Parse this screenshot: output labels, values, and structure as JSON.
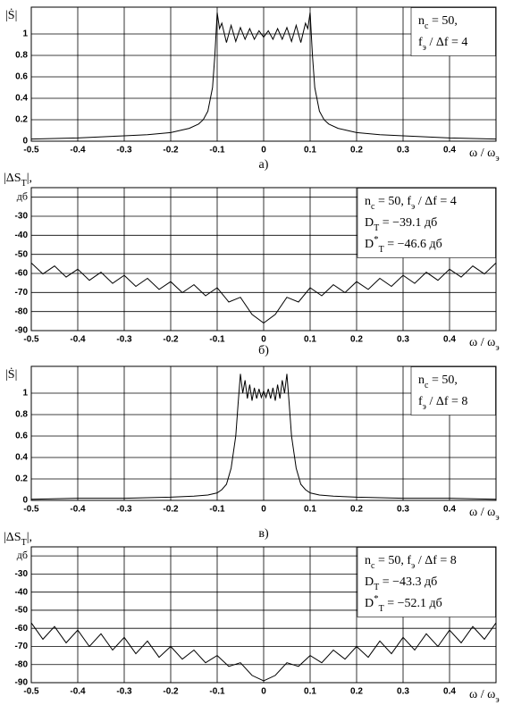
{
  "chart_data": [
    {
      "type": "line",
      "color": "#000000",
      "grid": true,
      "y_label": [
        {
          "text": "|Ṡ|"
        }
      ],
      "x_label": [
        {
          "text": "ω / ω"
        },
        {
          "text": "э",
          "sub": true
        }
      ],
      "caption": "а)",
      "annotation": [
        [
          {
            "text": "n"
          },
          {
            "text": "c",
            "sub": true
          },
          {
            "text": " = 50,"
          }
        ],
        [
          {
            "text": "f"
          },
          {
            "text": "э",
            "sub": true
          },
          {
            "text": " / Δf = 4"
          }
        ]
      ],
      "xlim": [
        -0.5,
        0.5
      ],
      "ylim": [
        0,
        1.25
      ],
      "xticks": [
        -0.5,
        -0.4,
        -0.3,
        -0.2,
        -0.1,
        0,
        0.1,
        0.2,
        0.3,
        0.4
      ],
      "yticks": [
        0,
        0.2,
        0.4,
        0.6,
        0.8,
        1
      ],
      "x": [
        -0.5,
        -0.4,
        -0.3,
        -0.25,
        -0.2,
        -0.18,
        -0.16,
        -0.14,
        -0.13,
        -0.12,
        -0.11,
        -0.105,
        -0.1,
        -0.095,
        -0.09,
        -0.08,
        -0.07,
        -0.06,
        -0.05,
        -0.04,
        -0.03,
        -0.02,
        -0.01,
        0,
        0.01,
        0.02,
        0.03,
        0.04,
        0.05,
        0.06,
        0.07,
        0.08,
        0.09,
        0.095,
        0.1,
        0.105,
        0.11,
        0.12,
        0.13,
        0.14,
        0.16,
        0.18,
        0.2,
        0.25,
        0.3,
        0.4,
        0.5
      ],
      "values": [
        0.02,
        0.03,
        0.05,
        0.06,
        0.08,
        0.1,
        0.12,
        0.16,
        0.2,
        0.28,
        0.5,
        0.8,
        1.2,
        1.05,
        1.1,
        0.92,
        1.08,
        0.93,
        1.06,
        0.95,
        1.05,
        0.95,
        1.03,
        0.97,
        1.03,
        0.95,
        1.05,
        0.95,
        1.06,
        0.93,
        1.08,
        0.92,
        1.1,
        1.05,
        1.2,
        0.8,
        0.5,
        0.28,
        0.2,
        0.16,
        0.12,
        0.1,
        0.08,
        0.06,
        0.05,
        0.03,
        0.02
      ]
    },
    {
      "type": "line",
      "color": "#000000",
      "grid": true,
      "y_label": [
        {
          "text": "|ΔS"
        },
        {
          "text": "T",
          "sub": true
        },
        {
          "text": "|,"
        }
      ],
      "x_label": [
        {
          "text": "ω / ω"
        },
        {
          "text": "э",
          "sub": true
        }
      ],
      "caption": "б)",
      "annotation": [
        [
          {
            "text": "n"
          },
          {
            "text": "c",
            "sub": true
          },
          {
            "text": " = 50, f"
          },
          {
            "text": "э",
            "sub": true
          },
          {
            "text": " / Δf = 4"
          }
        ],
        [
          {
            "text": "D"
          },
          {
            "text": "T",
            "sub": true
          },
          {
            "text": " = −39.1 дб"
          }
        ],
        [
          {
            "text": "D"
          },
          {
            "text": "*",
            "sup": true
          },
          {
            "text": "T",
            "sub": true
          },
          {
            "text": " = −46.6 дб"
          }
        ]
      ],
      "xlim": [
        -0.5,
        0.5
      ],
      "ylim": [
        -90,
        -15
      ],
      "xticks": [
        -0.5,
        -0.4,
        -0.3,
        -0.2,
        -0.1,
        0,
        0.1,
        0.2,
        0.3,
        0.4
      ],
      "yticks": [
        {
          "value": -20,
          "label": "дб"
        },
        -30,
        -40,
        -50,
        -60,
        -70,
        -80,
        -90
      ],
      "x": [
        -0.5,
        -0.475,
        -0.45,
        -0.425,
        -0.4,
        -0.375,
        -0.35,
        -0.325,
        -0.3,
        -0.275,
        -0.25,
        -0.225,
        -0.2,
        -0.175,
        -0.15,
        -0.125,
        -0.1,
        -0.075,
        -0.05,
        -0.025,
        0,
        0.025,
        0.05,
        0.075,
        0.1,
        0.125,
        0.15,
        0.175,
        0.2,
        0.225,
        0.25,
        0.275,
        0.3,
        0.325,
        0.35,
        0.375,
        0.4,
        0.425,
        0.45,
        0.475,
        0.5
      ],
      "values": [
        -54.5,
        -60.3,
        -56.1,
        -61.9,
        -57.8,
        -63.6,
        -59.4,
        -65.2,
        -61,
        -66.8,
        -62.6,
        -68.4,
        -64.3,
        -70.1,
        -65.9,
        -71.7,
        -67.5,
        -75,
        -72.5,
        -81.5,
        -86,
        -81.5,
        -72.5,
        -75,
        -67.5,
        -71.7,
        -65.9,
        -70.1,
        -64.3,
        -68.4,
        -62.6,
        -66.8,
        -61,
        -65.2,
        -59.4,
        -63.6,
        -57.8,
        -61.9,
        -56.1,
        -60.3,
        -54.5
      ]
    },
    {
      "type": "line",
      "color": "#000000",
      "grid": true,
      "y_label": [
        {
          "text": "|Ṡ|"
        }
      ],
      "x_label": [
        {
          "text": "ω / ω"
        },
        {
          "text": "э",
          "sub": true
        }
      ],
      "caption": "в)",
      "annotation": [
        [
          {
            "text": "n"
          },
          {
            "text": "c",
            "sub": true
          },
          {
            "text": " = 50,"
          }
        ],
        [
          {
            "text": "f"
          },
          {
            "text": "э",
            "sub": true
          },
          {
            "text": " / Δf = 8"
          }
        ]
      ],
      "xlim": [
        -0.5,
        0.5
      ],
      "ylim": [
        0,
        1.25
      ],
      "xticks": [
        -0.5,
        -0.4,
        -0.3,
        -0.2,
        -0.1,
        0,
        0.1,
        0.2,
        0.3,
        0.4
      ],
      "yticks": [
        0,
        0.2,
        0.4,
        0.6,
        0.8,
        1
      ],
      "x": [
        -0.5,
        -0.4,
        -0.3,
        -0.2,
        -0.15,
        -0.12,
        -0.1,
        -0.09,
        -0.08,
        -0.07,
        -0.06,
        -0.055,
        -0.05,
        -0.045,
        -0.04,
        -0.035,
        -0.03,
        -0.025,
        -0.02,
        -0.015,
        -0.01,
        -0.005,
        0,
        0.005,
        0.01,
        0.015,
        0.02,
        0.025,
        0.03,
        0.035,
        0.04,
        0.045,
        0.05,
        0.055,
        0.06,
        0.07,
        0.08,
        0.09,
        0.1,
        0.12,
        0.15,
        0.2,
        0.3,
        0.4,
        0.5
      ],
      "values": [
        0.01,
        0.02,
        0.02,
        0.03,
        0.04,
        0.05,
        0.07,
        0.1,
        0.15,
        0.3,
        0.6,
        0.9,
        1.18,
        1.0,
        1.12,
        0.95,
        1.08,
        0.93,
        1.05,
        0.95,
        1.04,
        0.96,
        1.02,
        0.96,
        1.04,
        0.95,
        1.05,
        0.93,
        1.08,
        0.95,
        1.12,
        1.0,
        1.18,
        0.9,
        0.6,
        0.3,
        0.15,
        0.1,
        0.07,
        0.05,
        0.04,
        0.03,
        0.02,
        0.02,
        0.01
      ]
    },
    {
      "type": "line",
      "color": "#000000",
      "grid": true,
      "y_label": [
        {
          "text": "|ΔS"
        },
        {
          "text": "T",
          "sub": true
        },
        {
          "text": "|,"
        }
      ],
      "x_label": [
        {
          "text": "ω / ω"
        },
        {
          "text": "э",
          "sub": true
        }
      ],
      "annotation": [
        [
          {
            "text": "n"
          },
          {
            "text": "c",
            "sub": true
          },
          {
            "text": " = 50, f"
          },
          {
            "text": "э",
            "sub": true
          },
          {
            "text": " / Δf = 8"
          }
        ],
        [
          {
            "text": "D"
          },
          {
            "text": "T",
            "sub": true
          },
          {
            "text": " = −43.3 дб"
          }
        ],
        [
          {
            "text": "D"
          },
          {
            "text": "*",
            "sup": true
          },
          {
            "text": "T",
            "sub": true
          },
          {
            "text": " = −52.1 дб"
          }
        ]
      ],
      "xlim": [
        -0.5,
        0.5
      ],
      "ylim": [
        -90,
        -15
      ],
      "xticks": [
        -0.5,
        -0.4,
        -0.3,
        -0.2,
        -0.1,
        0,
        0.1,
        0.2,
        0.3,
        0.4
      ],
      "yticks": [
        {
          "value": -20,
          "label": "дб"
        },
        -30,
        -40,
        -50,
        -60,
        -70,
        -80,
        -90
      ],
      "x": [
        -0.5,
        -0.475,
        -0.45,
        -0.425,
        -0.4,
        -0.375,
        -0.35,
        -0.325,
        -0.3,
        -0.275,
        -0.25,
        -0.225,
        -0.2,
        -0.175,
        -0.15,
        -0.125,
        -0.1,
        -0.075,
        -0.05,
        -0.025,
        0,
        0.025,
        0.05,
        0.075,
        0.1,
        0.125,
        0.15,
        0.175,
        0.2,
        0.225,
        0.25,
        0.275,
        0.3,
        0.325,
        0.35,
        0.375,
        0.4,
        0.425,
        0.45,
        0.475,
        0.5
      ],
      "values": [
        -57,
        -66,
        -59,
        -68,
        -61,
        -70,
        -63,
        -72,
        -65,
        -74,
        -67,
        -76,
        -70,
        -77,
        -72,
        -79,
        -75,
        -81,
        -79,
        -86,
        -89,
        -86,
        -79,
        -81,
        -75,
        -79,
        -72,
        -77,
        -70,
        -76,
        -67,
        -74,
        -65,
        -72,
        -63,
        -70,
        -61,
        -68,
        -59,
        -66,
        -57
      ]
    }
  ]
}
